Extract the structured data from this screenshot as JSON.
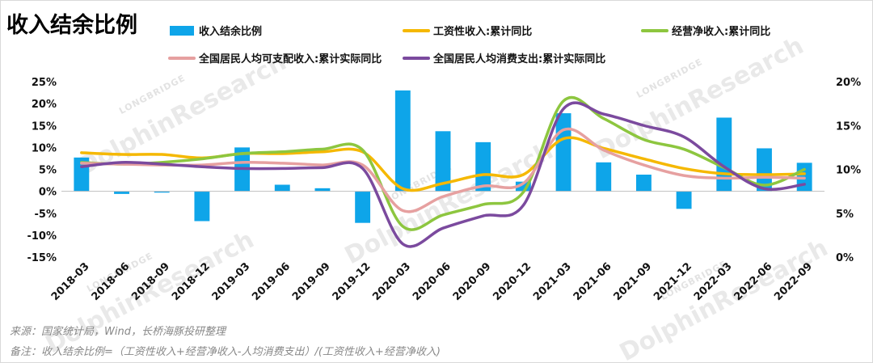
{
  "chart_data": {
    "type": "bar+line",
    "title": "收入结余比例",
    "categories": [
      "2018-03",
      "2018-06",
      "2018-09",
      "2018-12",
      "2019-03",
      "2019-06",
      "2019-09",
      "2019-12",
      "2020-03",
      "2020-06",
      "2020-09",
      "2020-12",
      "2021-03",
      "2021-06",
      "2021-09",
      "2021-12",
      "2022-03",
      "2022-06",
      "2022-09"
    ],
    "bar_series": {
      "name": "收入结余比例",
      "axis": "left",
      "color": "#0ea5e9",
      "values": [
        7.7,
        -0.6,
        -0.3,
        -6.8,
        10.0,
        1.5,
        0.7,
        -7.2,
        23.0,
        13.7,
        11.2,
        2.2,
        17.8,
        6.6,
        3.8,
        -4.0,
        16.8,
        9.8,
        6.5
      ]
    },
    "line_series": [
      {
        "name": "工资性收入:累计同比",
        "axis": "right",
        "color": "#f5b800",
        "values": [
          11.9,
          11.7,
          11.7,
          11.3,
          11.8,
          11.8,
          12.0,
          12.0,
          7.8,
          8.4,
          9.4,
          9.4,
          13.5,
          12.4,
          11.2,
          10.1,
          9.5,
          9.4,
          9.5
        ]
      },
      {
        "name": "经营净收入:累计同比",
        "axis": "right",
        "color": "#8dc63f",
        "values": [
          10.8,
          10.6,
          10.8,
          11.2,
          11.8,
          12.0,
          12.3,
          12.2,
          3.5,
          4.8,
          6.0,
          7.4,
          17.8,
          15.8,
          13.4,
          12.3,
          10.2,
          8.2,
          10.0
        ]
      },
      {
        "name": "全国居民人均可支配收入:累计实际同比",
        "axis": "right",
        "color": "#e6a0a0",
        "values": [
          10.7,
          10.6,
          10.5,
          10.5,
          10.8,
          10.7,
          10.5,
          10.5,
          5.3,
          6.9,
          8.1,
          8.4,
          14.5,
          12.2,
          10.5,
          9.3,
          9.0,
          9.1,
          9.0
        ]
      },
      {
        "name": "全国居民人均消费支出:累计实际同比",
        "axis": "right",
        "color": "#7b4a9e",
        "values": [
          10.3,
          10.8,
          10.6,
          10.3,
          10.1,
          10.1,
          10.2,
          10.1,
          1.5,
          3.3,
          4.7,
          5.9,
          16.9,
          16.3,
          15.0,
          13.7,
          10.3,
          7.8,
          8.3
        ]
      }
    ],
    "left_axis": {
      "min": -15,
      "max": 25,
      "step": 5,
      "tick_labels": [
        "-15%",
        "-10%",
        "-5%",
        "0%",
        "5%",
        "10%",
        "15%",
        "20%",
        "25%"
      ]
    },
    "right_axis": {
      "min": 0,
      "max": 20,
      "step": 5,
      "tick_labels": [
        "0%",
        "5%",
        "10%",
        "15%",
        "20%"
      ]
    },
    "grid": false,
    "legend_placement": "top"
  },
  "footnotes": {
    "source": "来源：国家统计局，Wind，长桥海豚投研整理",
    "note": "备注：收入结余比例=（工资性收入+经营净收入-人均消费支出）/(工资性收入+经营净收入)"
  },
  "watermark": {
    "main": "DolphinResearch",
    "sub": "LONGBRIDGE"
  }
}
